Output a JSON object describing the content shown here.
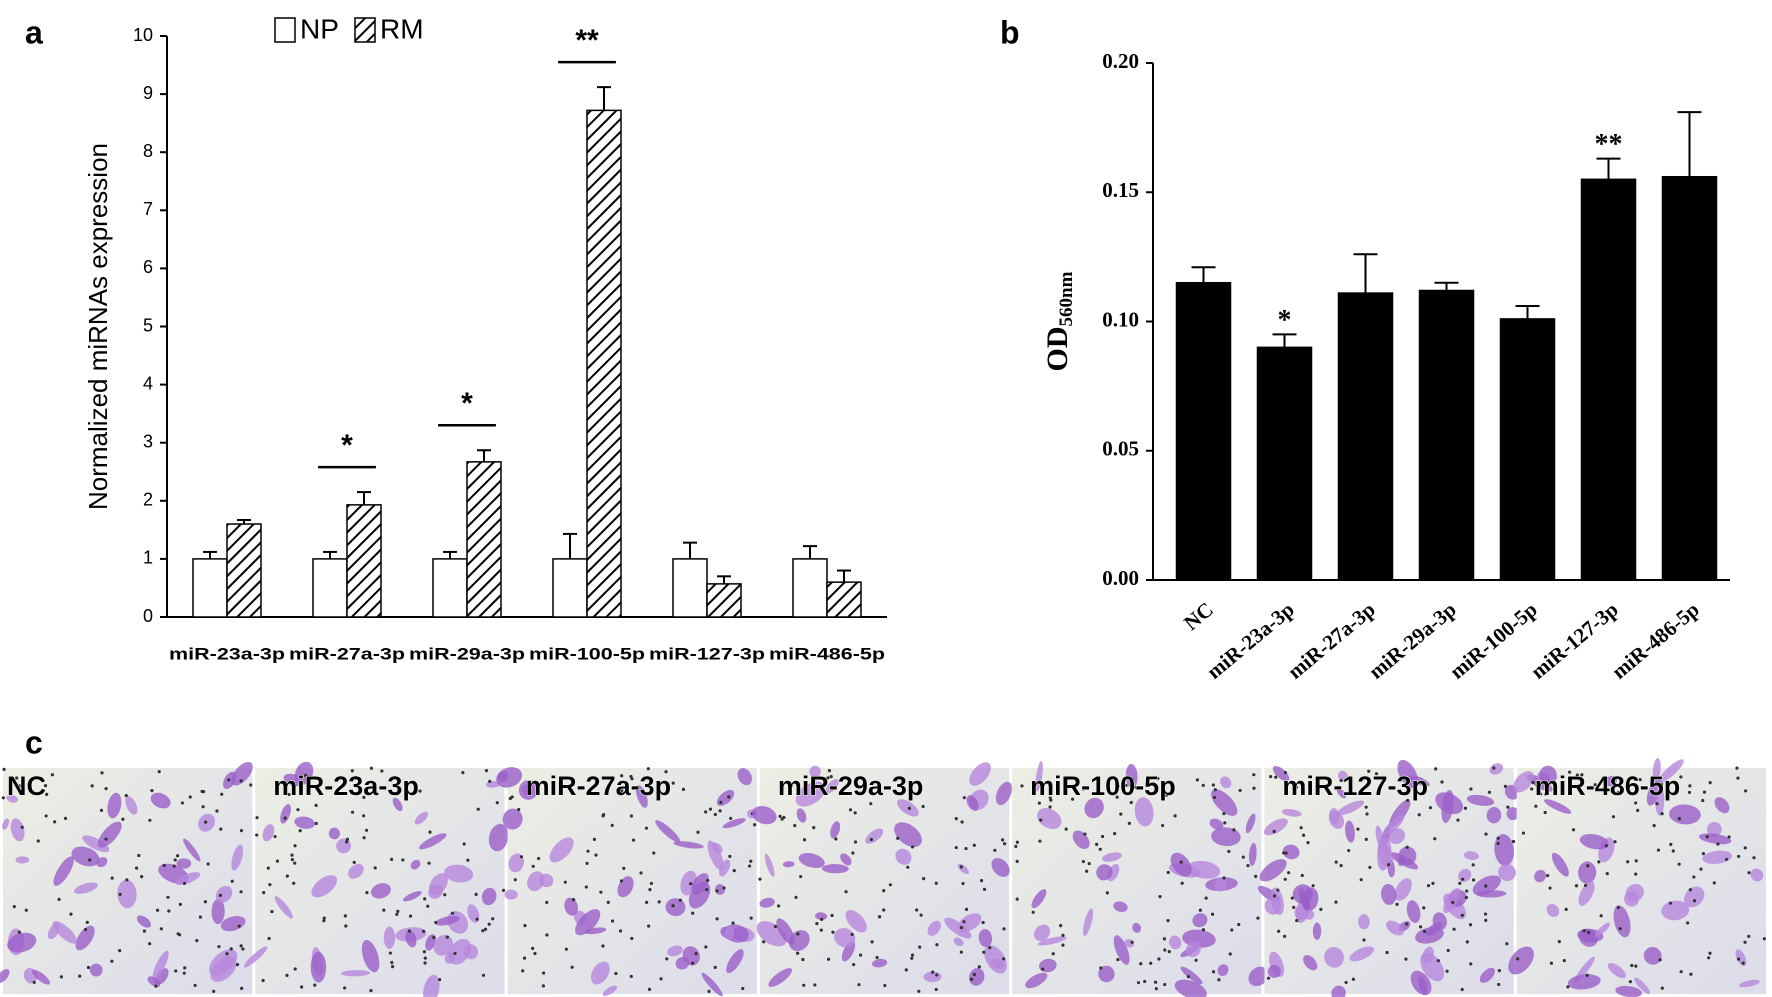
{
  "panel_labels": [
    "a",
    "b",
    "c"
  ],
  "chart_data": [
    {
      "type": "bar",
      "y_label": "Normalized miRNAs expression",
      "categories": [
        "miR-23a-3p",
        "miR-27a-3p",
        "miR-29a-3p",
        "miR-100-5p",
        "miR-127-3p",
        "miR-486-5p"
      ],
      "series": [
        {
          "name": "NP",
          "color": "#ffffff",
          "values": [
            1,
            1,
            1,
            1,
            1,
            1
          ],
          "errors": [
            0.12,
            0.12,
            0.12,
            0.43,
            0.28,
            0.22
          ]
        },
        {
          "name": "RM",
          "color": "#000000",
          "hatch": true,
          "values": [
            1.6,
            1.93,
            2.67,
            8.72,
            0.57,
            0.6
          ],
          "errors": [
            0.07,
            0.22,
            0.2,
            0.4,
            0.13,
            0.2
          ]
        }
      ],
      "significance": [
        null,
        "*",
        "*",
        "**",
        null,
        null
      ],
      "ylim": [
        0,
        10
      ],
      "yticks": [
        0,
        1,
        2,
        3,
        4,
        5,
        6,
        7,
        8,
        9,
        10
      ],
      "legend": "top"
    },
    {
      "type": "bar",
      "y_label": {
        "text": "OD",
        "subscript": "560nm"
      },
      "categories": [
        "NC",
        "miR-23a-3p",
        "miR-27a-3p",
        "miR-29a-3p",
        "miR-100-5p",
        "miR-127-3p",
        "miR-486-5p"
      ],
      "series": [
        {
          "color": "#000000",
          "values": [
            0.115,
            0.09,
            0.111,
            0.112,
            0.101,
            0.155,
            0.156
          ],
          "errors": [
            0.006,
            0.005,
            0.015,
            0.003,
            0.005,
            0.008,
            0.025
          ]
        }
      ],
      "significance": [
        null,
        "*",
        null,
        null,
        null,
        "**",
        null
      ],
      "ylim": [
        0,
        0.2
      ],
      "yticks": [
        {
          "value": 0,
          "label": "0.00"
        },
        {
          "value": 0.05,
          "label": "0.05"
        },
        {
          "value": 0.1,
          "label": "0.10"
        },
        {
          "value": 0.15,
          "label": "0.15"
        },
        {
          "value": 0.2,
          "label": "0.20"
        }
      ]
    }
  ],
  "micrographs": {
    "labels": [
      "NC",
      "miR-23a-3p",
      "miR-27a-3p",
      "miR-29a-3p",
      "miR-100-5p",
      "miR-127-3p",
      "miR-486-5p"
    ]
  }
}
